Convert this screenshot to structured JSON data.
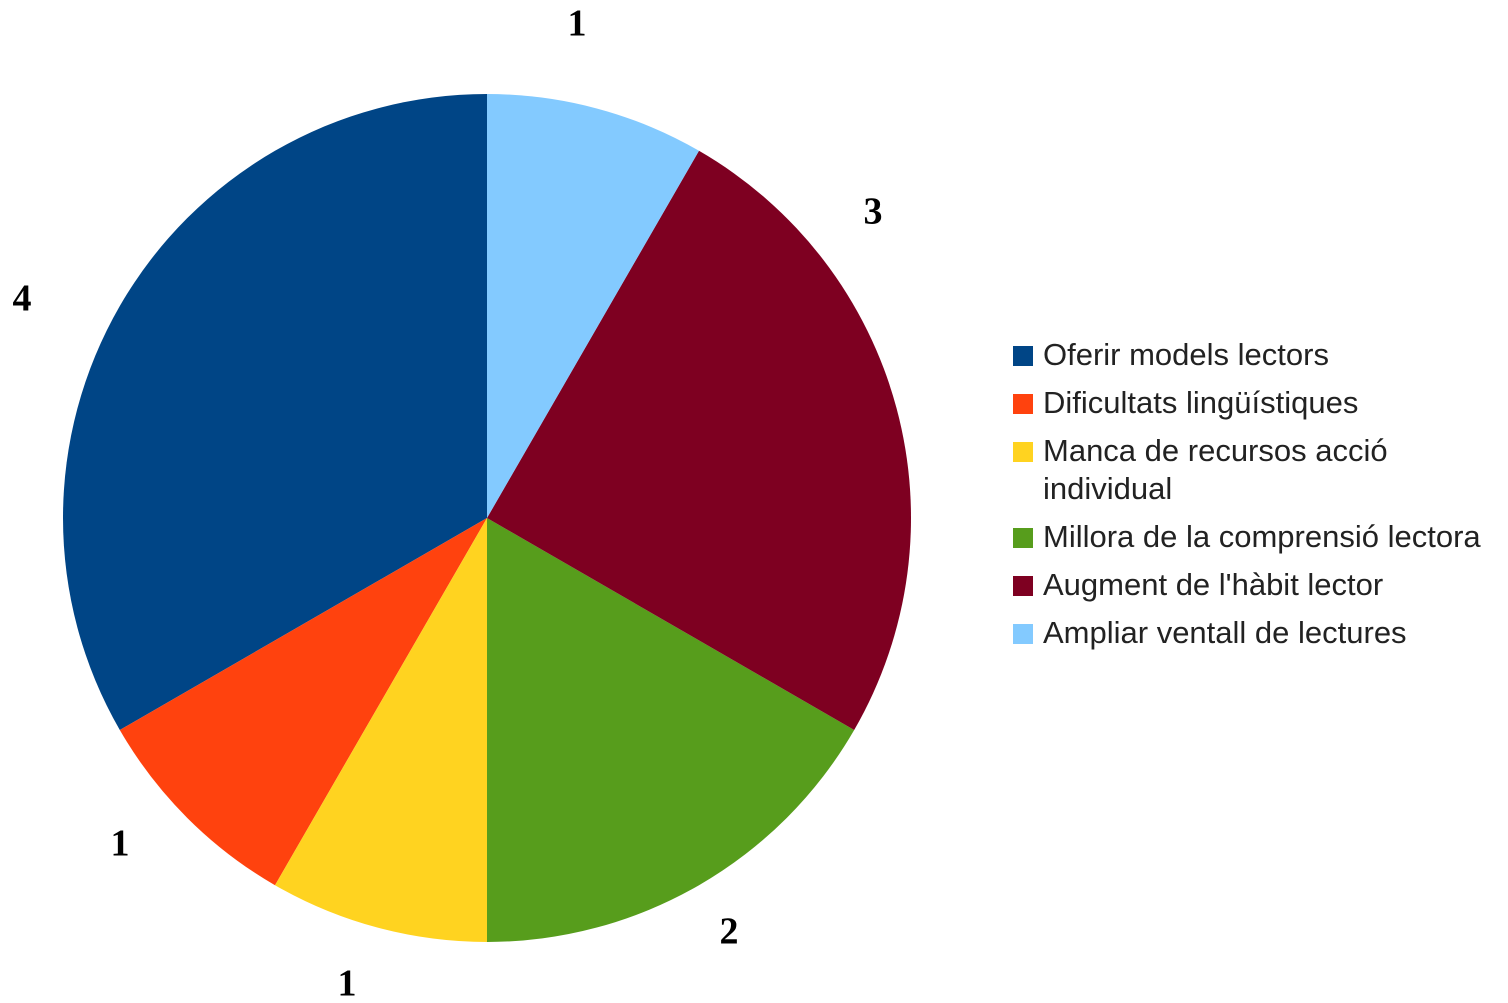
{
  "chart_data": {
    "type": "pie",
    "categories": [
      "Oferir models lectors",
      "Dificultats lingüístiques",
      "Manca de recursos acció individual",
      "Millora de la comprensió lectora",
      "Augment de l'hàbit lector",
      "Ampliar ventall de lectures"
    ],
    "values": [
      4,
      1,
      1,
      2,
      3,
      1
    ],
    "colors": [
      "#004586",
      "#ff420e",
      "#ffd320",
      "#579d1c",
      "#7e0021",
      "#83caff"
    ],
    "direction": "counterclockwise",
    "legend": "right"
  }
}
